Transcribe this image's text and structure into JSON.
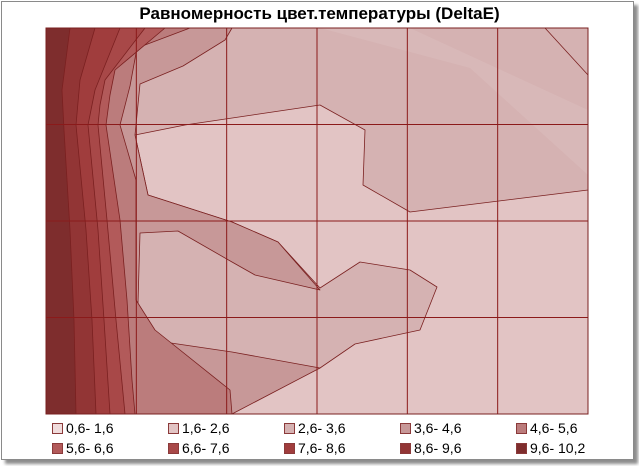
{
  "chart_data": {
    "type": "heatmap",
    "title": "Равномерность цвет.температуры (DeltaE)",
    "xlabel": "",
    "ylabel": "",
    "grid": true,
    "grid_rows": 4,
    "grid_cols": 6,
    "levels": [
      {
        "label": "0,6- 1,6",
        "color": "#f0dcdc"
      },
      {
        "label": "1,6- 2,6",
        "color": "#e2c4c4"
      },
      {
        "label": "2,6- 3,6",
        "color": "#d5b2b2"
      },
      {
        "label": "3,6- 4,6",
        "color": "#c79898"
      },
      {
        "label": "4,6- 5,6",
        "color": "#bb7c7c"
      },
      {
        "label": "5,6- 6,6",
        "color": "#b25a5a"
      },
      {
        "label": "6,6- 7,6",
        "color": "#a84848"
      },
      {
        "label": "7,6- 8,6",
        "color": "#a03d3d"
      },
      {
        "label": "8,6- 9,6",
        "color": "#923535"
      },
      {
        "label": "9,6- 10,2",
        "color": "#7e2d2d"
      }
    ],
    "legend_position": "bottom"
  }
}
